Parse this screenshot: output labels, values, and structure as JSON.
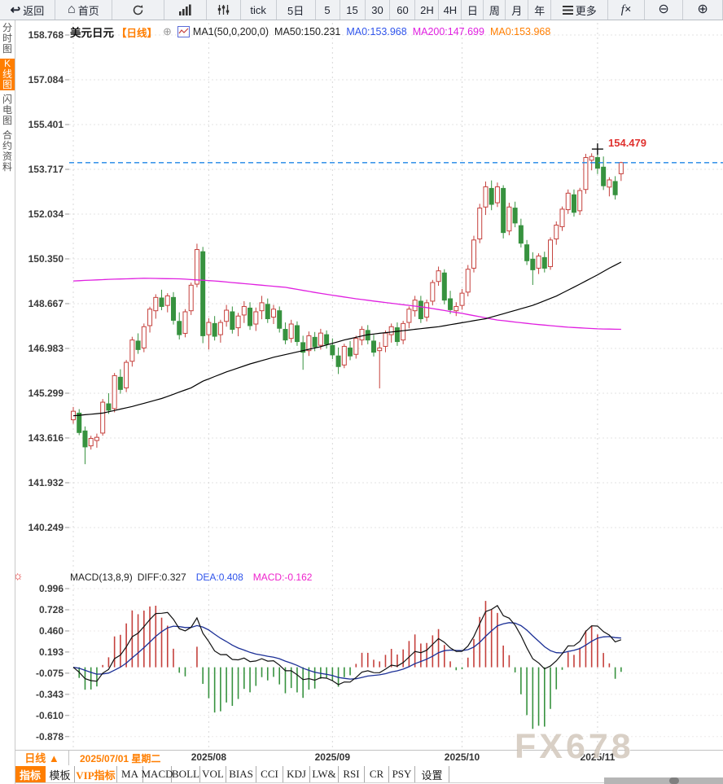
{
  "icons": {
    "back": "↩",
    "home": "⌂",
    "add": "⊕",
    "zoom_out": "⊖",
    "zoom_in": "⊕",
    "sun": "☼",
    "up_triangle": "▲"
  },
  "toolbar": {
    "items": [
      {
        "name": "back-button",
        "icon": "back-arrow-icon",
        "label": "返回"
      },
      {
        "name": "home-button",
        "icon": "home-icon",
        "label": "首页"
      },
      {
        "name": "refresh-button",
        "icon": "refresh-icon",
        "label": ""
      },
      {
        "name": "bar-chart-button",
        "icon": "bar-chart-icon",
        "label": ""
      },
      {
        "name": "candle-style-button",
        "icon": "candle-sliders-icon",
        "label": ""
      },
      {
        "name": "interval-tick-button",
        "icon": "",
        "label": "tick"
      },
      {
        "name": "interval-5d-button",
        "icon": "",
        "label": "5日"
      },
      {
        "name": "interval-5-button",
        "icon": "",
        "label": "5"
      },
      {
        "name": "interval-15-button",
        "icon": "",
        "label": "15"
      },
      {
        "name": "interval-30-button",
        "icon": "",
        "label": "30"
      },
      {
        "name": "interval-60-button",
        "icon": "",
        "label": "60"
      },
      {
        "name": "interval-2h-button",
        "icon": "",
        "label": "2H"
      },
      {
        "name": "interval-4h-button",
        "icon": "",
        "label": "4H"
      },
      {
        "name": "interval-day-button",
        "icon": "",
        "label": "日"
      },
      {
        "name": "interval-week-button",
        "icon": "",
        "label": "周"
      },
      {
        "name": "interval-month-button",
        "icon": "",
        "label": "月"
      },
      {
        "name": "interval-year-button",
        "icon": "",
        "label": "年"
      },
      {
        "name": "more-button",
        "icon": "menu-icon",
        "label": "更多"
      },
      {
        "name": "fx-indicator-button",
        "icon": "fx-icon",
        "label": "fx"
      },
      {
        "name": "zoom-out-button",
        "icon": "zoom-out-icon",
        "label": ""
      },
      {
        "name": "zoom-in-button",
        "icon": "zoom-in-icon",
        "label": ""
      }
    ]
  },
  "sidebar": {
    "items": [
      {
        "name": "sidebar-item-time-chart",
        "label": "分时图",
        "active": false
      },
      {
        "name": "sidebar-item-kline-chart",
        "label": "K线图",
        "active": true
      },
      {
        "name": "sidebar-item-lightning-chart",
        "label": "闪电图",
        "active": false
      },
      {
        "name": "sidebar-item-contract-info",
        "label": "合约资料",
        "active": false
      }
    ]
  },
  "chart_header": {
    "symbol": "美元日元",
    "period_tag": "【日线】",
    "add_icon": "⊕",
    "ma_def": "MA1(50,0,200,0)",
    "ma50": "MA50:150.231",
    "ma0_blue": "MA0:153.968",
    "ma200": "MA200:147.699",
    "ma0_orange": "MA0:153.968"
  },
  "macd_header": {
    "title": "MACD(13,8,9)",
    "diff": "DIFF:0.327",
    "dea": "DEA:0.408",
    "macd": "MACD:-0.162"
  },
  "price_marker": {
    "label": "154.479"
  },
  "bottom": {
    "period_label": "日线 ▲",
    "tabs": [
      {
        "name": "tab-indicators",
        "label": "指标",
        "style": "active"
      },
      {
        "name": "tab-templates",
        "label": "模板",
        "style": "plain"
      },
      {
        "name": "tab-vip-indicators",
        "label": "VIP指标",
        "style": "vip"
      },
      {
        "name": "tab-ma",
        "label": "MA",
        "style": "plain"
      },
      {
        "name": "tab-macd",
        "label": "MACD",
        "style": "plain"
      },
      {
        "name": "tab-boll",
        "label": "BOLL",
        "style": "plain"
      },
      {
        "name": "tab-vol",
        "label": "VOL",
        "style": "plain"
      },
      {
        "name": "tab-bias",
        "label": "BIAS",
        "style": "plain"
      },
      {
        "name": "tab-cci",
        "label": "CCI",
        "style": "plain"
      },
      {
        "name": "tab-kdj",
        "label": "KDJ",
        "style": "plain"
      },
      {
        "name": "tab-lw",
        "label": "LW&",
        "style": "plain"
      },
      {
        "name": "tab-rsi",
        "label": "RSI",
        "style": "plain"
      },
      {
        "name": "tab-cr",
        "label": "CR",
        "style": "plain"
      },
      {
        "name": "tab-psy",
        "label": "PSY",
        "style": "plain"
      },
      {
        "name": "tab-settings",
        "label": "设置",
        "style": "plain"
      }
    ]
  },
  "watermark": "FX678",
  "colors": {
    "up": "#c5403c",
    "down": "#37923f",
    "ma50": "#000000",
    "ma200": "#e020e0",
    "dea": "#1b2f96",
    "diff": "#111111",
    "last_price_line": "#1e86e6",
    "accent": "#ff7e00",
    "marker_red": "#e0312e"
  },
  "chart_data": {
    "type": "candlestick",
    "symbol": "USD/JPY (美元日元)",
    "period": "daily (日线)",
    "main": {
      "yticks": [
        "158.768",
        "157.084",
        "155.401",
        "153.717",
        "152.034",
        "150.350",
        "148.667",
        "146.983",
        "145.299",
        "143.616",
        "141.932",
        "140.249"
      ],
      "ytick_values": [
        158.768,
        157.084,
        155.401,
        153.717,
        152.034,
        150.35,
        148.667,
        146.983,
        145.299,
        143.616,
        141.932,
        140.249
      ],
      "last_price": 153.968,
      "high_annotation": {
        "index": 89,
        "price": 154.479,
        "label": "154.479"
      },
      "candles": [
        [
          144.3,
          144.78,
          144.15,
          144.62
        ],
        [
          144.55,
          144.7,
          143.72,
          143.82
        ],
        [
          143.88,
          144.05,
          142.63,
          143.28
        ],
        [
          143.32,
          143.7,
          143.18,
          143.6
        ],
        [
          143.52,
          143.78,
          143.25,
          143.64
        ],
        [
          143.8,
          145.08,
          143.7,
          144.96
        ],
        [
          144.9,
          145.3,
          144.52,
          144.66
        ],
        [
          144.72,
          146.06,
          144.58,
          145.96
        ],
        [
          145.9,
          146.2,
          145.28,
          145.44
        ],
        [
          145.5,
          146.55,
          145.34,
          146.46
        ],
        [
          146.5,
          147.42,
          146.3,
          147.3
        ],
        [
          147.26,
          147.55,
          146.78,
          146.94
        ],
        [
          147.0,
          147.92,
          146.84,
          147.8
        ],
        [
          147.84,
          148.55,
          147.58,
          148.46
        ],
        [
          148.4,
          149.02,
          148.1,
          148.9
        ],
        [
          148.88,
          149.19,
          148.42,
          148.56
        ],
        [
          148.6,
          149.06,
          148.34,
          148.96
        ],
        [
          148.9,
          149.1,
          147.88,
          148.04
        ],
        [
          148.0,
          148.34,
          147.32,
          147.5
        ],
        [
          147.55,
          148.46,
          147.4,
          148.36
        ],
        [
          148.4,
          149.46,
          148.24,
          149.36
        ],
        [
          149.4,
          150.92,
          149.28,
          150.7
        ],
        [
          150.62,
          150.8,
          147.18,
          147.46
        ],
        [
          147.5,
          148.12,
          146.94,
          147.96
        ],
        [
          147.92,
          148.2,
          147.28,
          147.44
        ],
        [
          147.5,
          148.06,
          147.2,
          147.96
        ],
        [
          148.0,
          148.62,
          147.8,
          148.42
        ],
        [
          148.36,
          148.56,
          147.54,
          147.7
        ],
        [
          147.76,
          148.32,
          147.44,
          148.2
        ],
        [
          148.24,
          148.76,
          147.94,
          148.56
        ],
        [
          148.5,
          148.72,
          147.68,
          147.84
        ],
        [
          147.9,
          148.52,
          147.64,
          148.36
        ],
        [
          148.4,
          148.96,
          148.08,
          148.7
        ],
        [
          148.64,
          148.86,
          147.94,
          148.1
        ],
        [
          148.16,
          148.62,
          147.9,
          148.46
        ],
        [
          148.4,
          148.56,
          147.58,
          147.74
        ],
        [
          147.7,
          147.96,
          147.14,
          147.3
        ],
        [
          147.36,
          148.06,
          147.2,
          147.9
        ],
        [
          147.84,
          148.0,
          147.08,
          147.24
        ],
        [
          147.2,
          147.46,
          146.18,
          146.84
        ],
        [
          146.9,
          147.62,
          146.7,
          147.46
        ],
        [
          147.4,
          147.6,
          146.88,
          147.04
        ],
        [
          147.1,
          147.72,
          146.94,
          147.56
        ],
        [
          147.5,
          147.66,
          146.98,
          147.14
        ],
        [
          147.1,
          147.36,
          146.58,
          146.74
        ],
        [
          146.7,
          147.02,
          146.02,
          146.3
        ],
        [
          146.36,
          147.16,
          146.24,
          147.06
        ],
        [
          147.0,
          147.26,
          146.54,
          146.7
        ],
        [
          146.76,
          147.46,
          146.6,
          147.36
        ],
        [
          147.3,
          147.82,
          147.1,
          147.7
        ],
        [
          147.66,
          147.86,
          147.14,
          147.3
        ],
        [
          147.26,
          147.5,
          146.68,
          146.84
        ],
        [
          146.9,
          147.22,
          145.48,
          147.0
        ],
        [
          147.06,
          147.66,
          146.84,
          147.56
        ],
        [
          147.5,
          147.92,
          147.2,
          147.8
        ],
        [
          147.76,
          147.96,
          147.08,
          147.24
        ],
        [
          147.3,
          148.02,
          147.14,
          147.92
        ],
        [
          147.96,
          148.56,
          147.74,
          148.46
        ],
        [
          148.4,
          148.96,
          148.18,
          148.8
        ],
        [
          148.76,
          148.96,
          147.94,
          148.1
        ],
        [
          148.16,
          148.82,
          148.0,
          148.7
        ],
        [
          148.76,
          149.56,
          148.6,
          149.46
        ],
        [
          149.5,
          150.06,
          149.34,
          149.9
        ],
        [
          149.82,
          149.96,
          148.64,
          148.8
        ],
        [
          148.85,
          149.15,
          148.28,
          148.44
        ],
        [
          148.4,
          148.72,
          148.2,
          148.56
        ],
        [
          148.6,
          149.22,
          148.44,
          149.06
        ],
        [
          149.1,
          150.12,
          148.94,
          149.96
        ],
        [
          150.0,
          151.22,
          149.84,
          151.06
        ],
        [
          151.1,
          152.42,
          150.94,
          152.26
        ],
        [
          152.3,
          153.26,
          152.0,
          153.06
        ],
        [
          153.0,
          153.3,
          152.18,
          152.4
        ],
        [
          152.46,
          153.22,
          152.3,
          153.06
        ],
        [
          153.0,
          153.12,
          151.12,
          151.34
        ],
        [
          151.4,
          152.46,
          151.24,
          152.3
        ],
        [
          152.26,
          152.5,
          151.54,
          151.7
        ],
        [
          151.6,
          151.86,
          150.78,
          150.94
        ],
        [
          150.88,
          151.06,
          150.12,
          150.28
        ],
        [
          150.34,
          150.6,
          149.37,
          149.94
        ],
        [
          150.0,
          150.56,
          149.78,
          150.46
        ],
        [
          150.4,
          150.62,
          149.84,
          150.0
        ],
        [
          150.06,
          151.16,
          149.94,
          151.06
        ],
        [
          151.1,
          151.76,
          150.88,
          151.62
        ],
        [
          151.56,
          152.32,
          151.4,
          152.22
        ],
        [
          152.2,
          152.96,
          152.04,
          152.82
        ],
        [
          152.76,
          152.96,
          151.94,
          152.1
        ],
        [
          152.16,
          153.02,
          152.0,
          152.92
        ],
        [
          152.96,
          154.3,
          152.8,
          154.16
        ],
        [
          154.06,
          154.32,
          153.68,
          154.2
        ],
        [
          154.16,
          154.48,
          153.54,
          153.76
        ],
        [
          153.8,
          154.2,
          152.94,
          153.1
        ],
        [
          153.05,
          153.42,
          152.7,
          153.32
        ],
        [
          153.26,
          153.46,
          152.58,
          152.76
        ],
        [
          153.55,
          154.0,
          153.28,
          153.97
        ]
      ],
      "ma50_points": [
        [
          0,
          144.45
        ],
        [
          5,
          144.55
        ],
        [
          10,
          144.8
        ],
        [
          15,
          145.1
        ],
        [
          20,
          145.5
        ],
        [
          22,
          145.75
        ],
        [
          26,
          146.1
        ],
        [
          30,
          146.4
        ],
        [
          34,
          146.65
        ],
        [
          38,
          146.85
        ],
        [
          42,
          147.05
        ],
        [
          46,
          147.3
        ],
        [
          50,
          147.5
        ],
        [
          54,
          147.6
        ],
        [
          58,
          147.7
        ],
        [
          62,
          147.8
        ],
        [
          66,
          147.95
        ],
        [
          70,
          148.1
        ],
        [
          74,
          148.35
        ],
        [
          78,
          148.6
        ],
        [
          82,
          148.95
        ],
        [
          86,
          149.4
        ],
        [
          89,
          149.75
        ],
        [
          91,
          150.0
        ],
        [
          93,
          150.23
        ]
      ],
      "ma200_points": [
        [
          0,
          149.52
        ],
        [
          6,
          149.58
        ],
        [
          12,
          149.62
        ],
        [
          18,
          149.6
        ],
        [
          24,
          149.52
        ],
        [
          30,
          149.4
        ],
        [
          36,
          149.28
        ],
        [
          42,
          149.05
        ],
        [
          48,
          148.85
        ],
        [
          54,
          148.68
        ],
        [
          60,
          148.52
        ],
        [
          66,
          148.3
        ],
        [
          72,
          148.05
        ],
        [
          78,
          147.9
        ],
        [
          84,
          147.78
        ],
        [
          89,
          147.72
        ],
        [
          93,
          147.7
        ]
      ]
    },
    "xticks": [
      {
        "index": 0,
        "label": "2025/07/01 星期二",
        "align": "left",
        "highlight": true
      },
      {
        "index": 23,
        "label": "2025/08",
        "align": "center",
        "highlight": false
      },
      {
        "index": 44,
        "label": "2025/09",
        "align": "center",
        "highlight": false
      },
      {
        "index": 66,
        "label": "2025/10",
        "align": "center",
        "highlight": false
      },
      {
        "index": 89,
        "label": "2025/11",
        "align": "center",
        "highlight": false
      }
    ],
    "macd": {
      "params": "13,8,9",
      "diff_shown": 0.327,
      "dea_shown": 0.408,
      "macd_shown": -0.162,
      "yticks": [
        "0.996",
        "0.728",
        "0.460",
        "0.193",
        "-0.075",
        "-0.343",
        "-0.610",
        "-0.878"
      ],
      "ytick_values": [
        0.996,
        0.728,
        0.46,
        0.193,
        -0.075,
        -0.343,
        -0.61,
        -0.878
      ]
    }
  }
}
